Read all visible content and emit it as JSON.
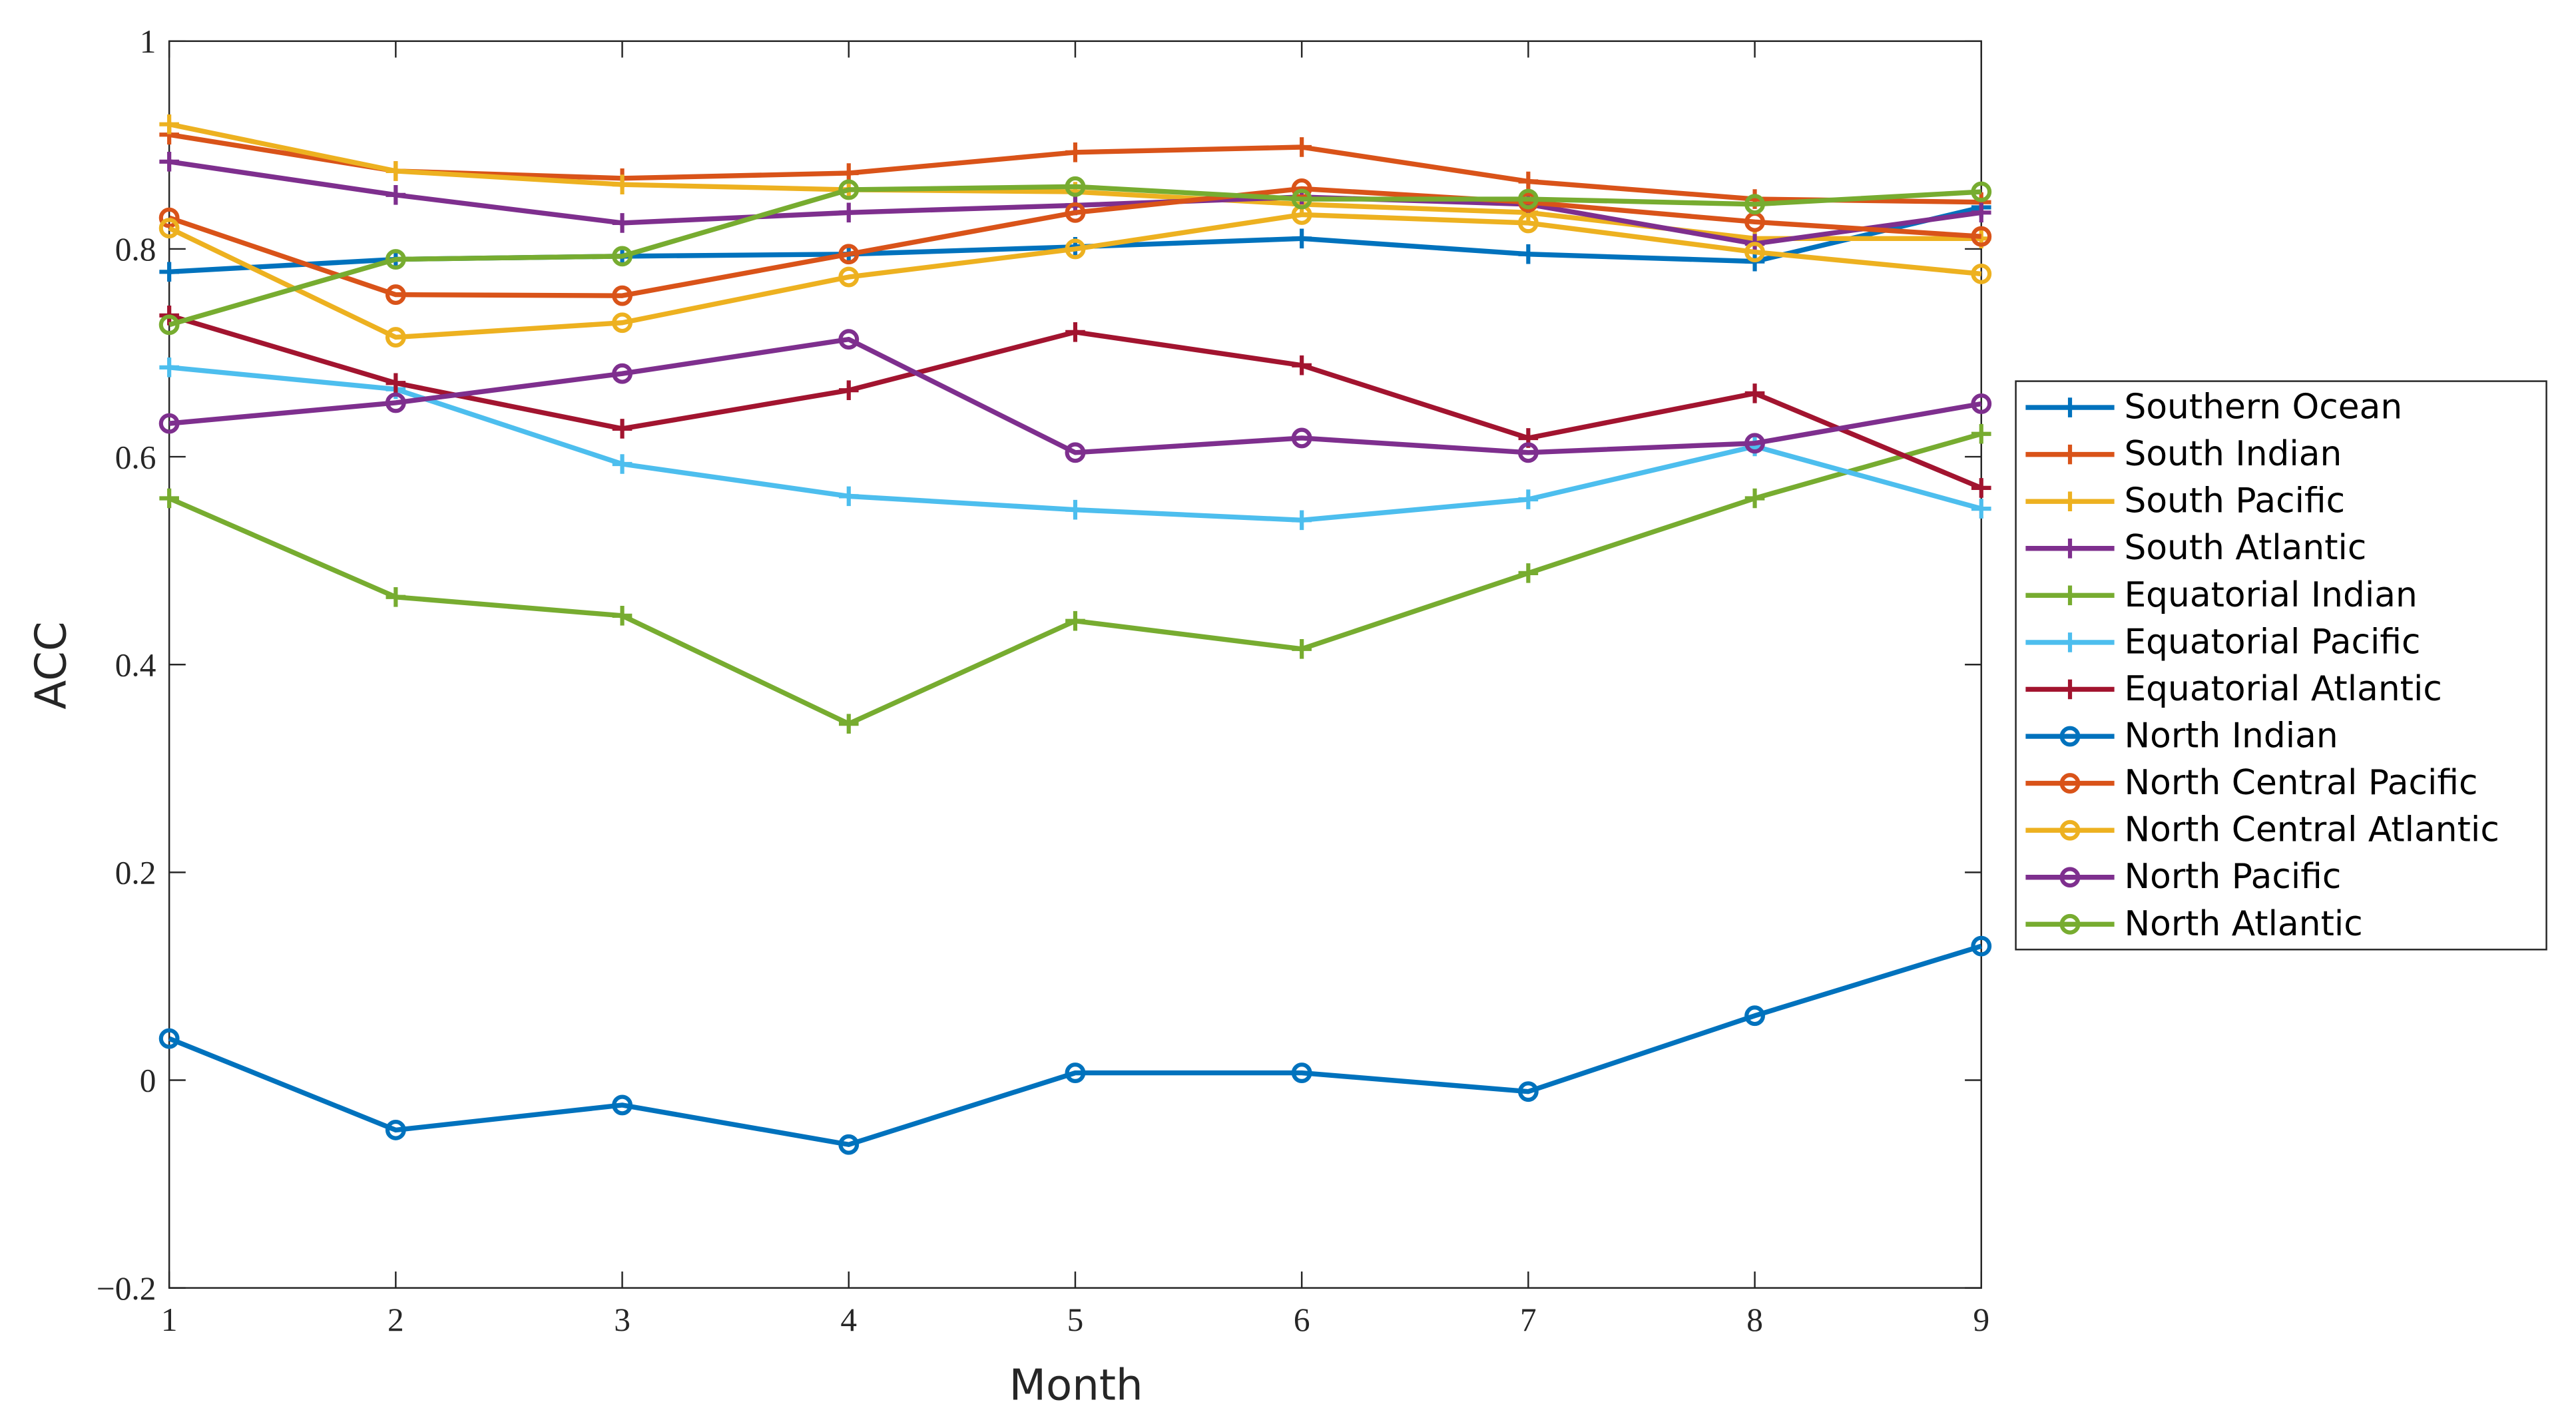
{
  "chart_data": {
    "type": "line",
    "x_label": "Month",
    "y_label": "ACC",
    "x": [
      1,
      2,
      3,
      4,
      5,
      6,
      7,
      8,
      9
    ],
    "xlim": [
      1,
      9
    ],
    "xticks": [
      1,
      2,
      3,
      4,
      5,
      6,
      7,
      8,
      9
    ],
    "ylim": [
      -0.2,
      1
    ],
    "yticks": [
      {
        "value": -0.2,
        "label": "−0.2"
      },
      0,
      0.2,
      0.4,
      0.6,
      0.8,
      1
    ],
    "grid": false,
    "legend_position": "east outside",
    "series": [
      {
        "name": "Southern Ocean",
        "color": "#0072BD",
        "marker": "+",
        "values": [
          0.778,
          0.79,
          0.793,
          0.795,
          0.802,
          0.81,
          0.795,
          0.788,
          0.84
        ]
      },
      {
        "name": "South Indian",
        "color": "#D95319",
        "marker": "+",
        "values": [
          0.91,
          0.875,
          0.868,
          0.873,
          0.893,
          0.898,
          0.865,
          0.848,
          0.845
        ]
      },
      {
        "name": "South Pacific",
        "color": "#EDB120",
        "marker": "+",
        "values": [
          0.92,
          0.875,
          0.862,
          0.857,
          0.855,
          0.843,
          0.835,
          0.81,
          0.81
        ]
      },
      {
        "name": "South Atlantic",
        "color": "#7E2F8E",
        "marker": "+",
        "values": [
          0.884,
          0.852,
          0.825,
          0.835,
          0.842,
          0.85,
          0.843,
          0.805,
          0.835
        ]
      },
      {
        "name": "Equatorial Indian",
        "color": "#77AC30",
        "marker": "+",
        "values": [
          0.56,
          0.465,
          0.447,
          0.343,
          0.442,
          0.415,
          0.488,
          0.56,
          0.622
        ]
      },
      {
        "name": "Equatorial Pacific",
        "color": "#4DBEEE",
        "marker": "+",
        "values": [
          0.686,
          0.665,
          0.593,
          0.562,
          0.549,
          0.539,
          0.559,
          0.61,
          0.55
        ]
      },
      {
        "name": "Equatorial Atlantic",
        "color": "#A2142F",
        "marker": "+",
        "values": [
          0.736,
          0.671,
          0.627,
          0.664,
          0.72,
          0.688,
          0.618,
          0.661,
          0.57
        ]
      },
      {
        "name": "North Indian",
        "color": "#0072BD",
        "marker": "o",
        "values": [
          0.04,
          -0.048,
          -0.024,
          -0.062,
          0.007,
          0.007,
          -0.011,
          0.062,
          0.129
        ]
      },
      {
        "name": "North Central Pacific",
        "color": "#D95319",
        "marker": "o",
        "values": [
          0.83,
          0.756,
          0.755,
          0.795,
          0.835,
          0.858,
          0.845,
          0.826,
          0.812
        ]
      },
      {
        "name": "North Central Atlantic",
        "color": "#EDB120",
        "marker": "o",
        "values": [
          0.82,
          0.715,
          0.729,
          0.773,
          0.8,
          0.833,
          0.825,
          0.797,
          0.776
        ]
      },
      {
        "name": "North Pacific",
        "color": "#7E2F8E",
        "marker": "o",
        "values": [
          0.632,
          0.652,
          0.68,
          0.713,
          0.604,
          0.618,
          0.604,
          0.613,
          0.651
        ]
      },
      {
        "name": "North Atlantic",
        "color": "#77AC30",
        "marker": "o",
        "values": [
          0.727,
          0.79,
          0.793,
          0.857,
          0.86,
          0.848,
          0.848,
          0.843,
          0.855
        ]
      }
    ]
  }
}
